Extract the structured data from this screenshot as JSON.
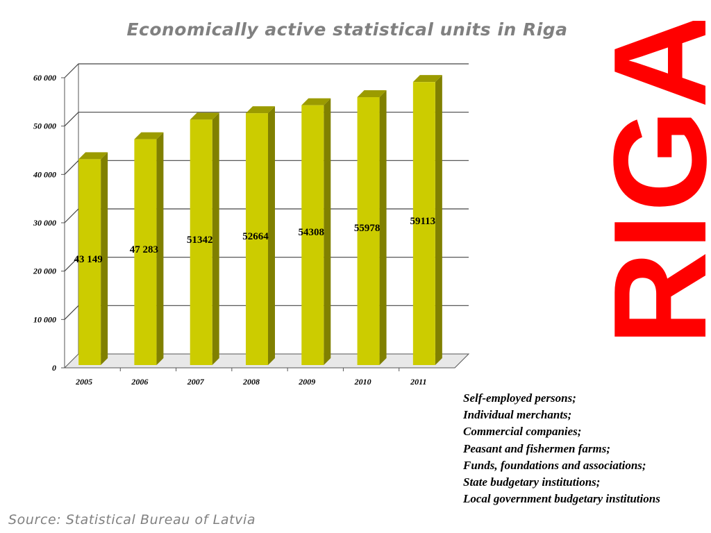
{
  "colors": {
    "bar_front": "#cccc00",
    "bar_side": "#808000",
    "bar_top": "#9b9b00",
    "logo": "#ff0000",
    "title": "#808080"
  },
  "logo": {
    "text": "RIGA"
  },
  "unit_types": [
    "Self-employed persons;",
    "Individual  merchants;",
    "Commercial companies;",
    "Peasant and fishermen farms;",
    "Funds,  foundations and associations;",
    "State budgetary institutions;",
    "Local  government budgetary institutions"
  ],
  "source": "Source: Statistical Bureau of Latvia",
  "chart_data": {
    "type": "bar",
    "title": "Economically active statistical units in Riga",
    "categories": [
      "2005",
      "2006",
      "2007",
      "2008",
      "2009",
      "2010",
      "2011"
    ],
    "values": [
      43149,
      47283,
      51342,
      52664,
      54308,
      55978,
      59113
    ],
    "data_labels": [
      "43 149",
      "47 283",
      "51342",
      "52664",
      "54308",
      "55978",
      "59113"
    ],
    "yticks": [
      0,
      10000,
      20000,
      30000,
      40000,
      50000,
      60000
    ],
    "ytick_labels": [
      "0",
      "10 000",
      "20 000",
      "30 000",
      "40 000",
      "50 000",
      "60 000"
    ],
    "ylim": [
      0,
      60000
    ],
    "xlabel": "",
    "ylabel": "",
    "grid": true,
    "legend": "none"
  }
}
